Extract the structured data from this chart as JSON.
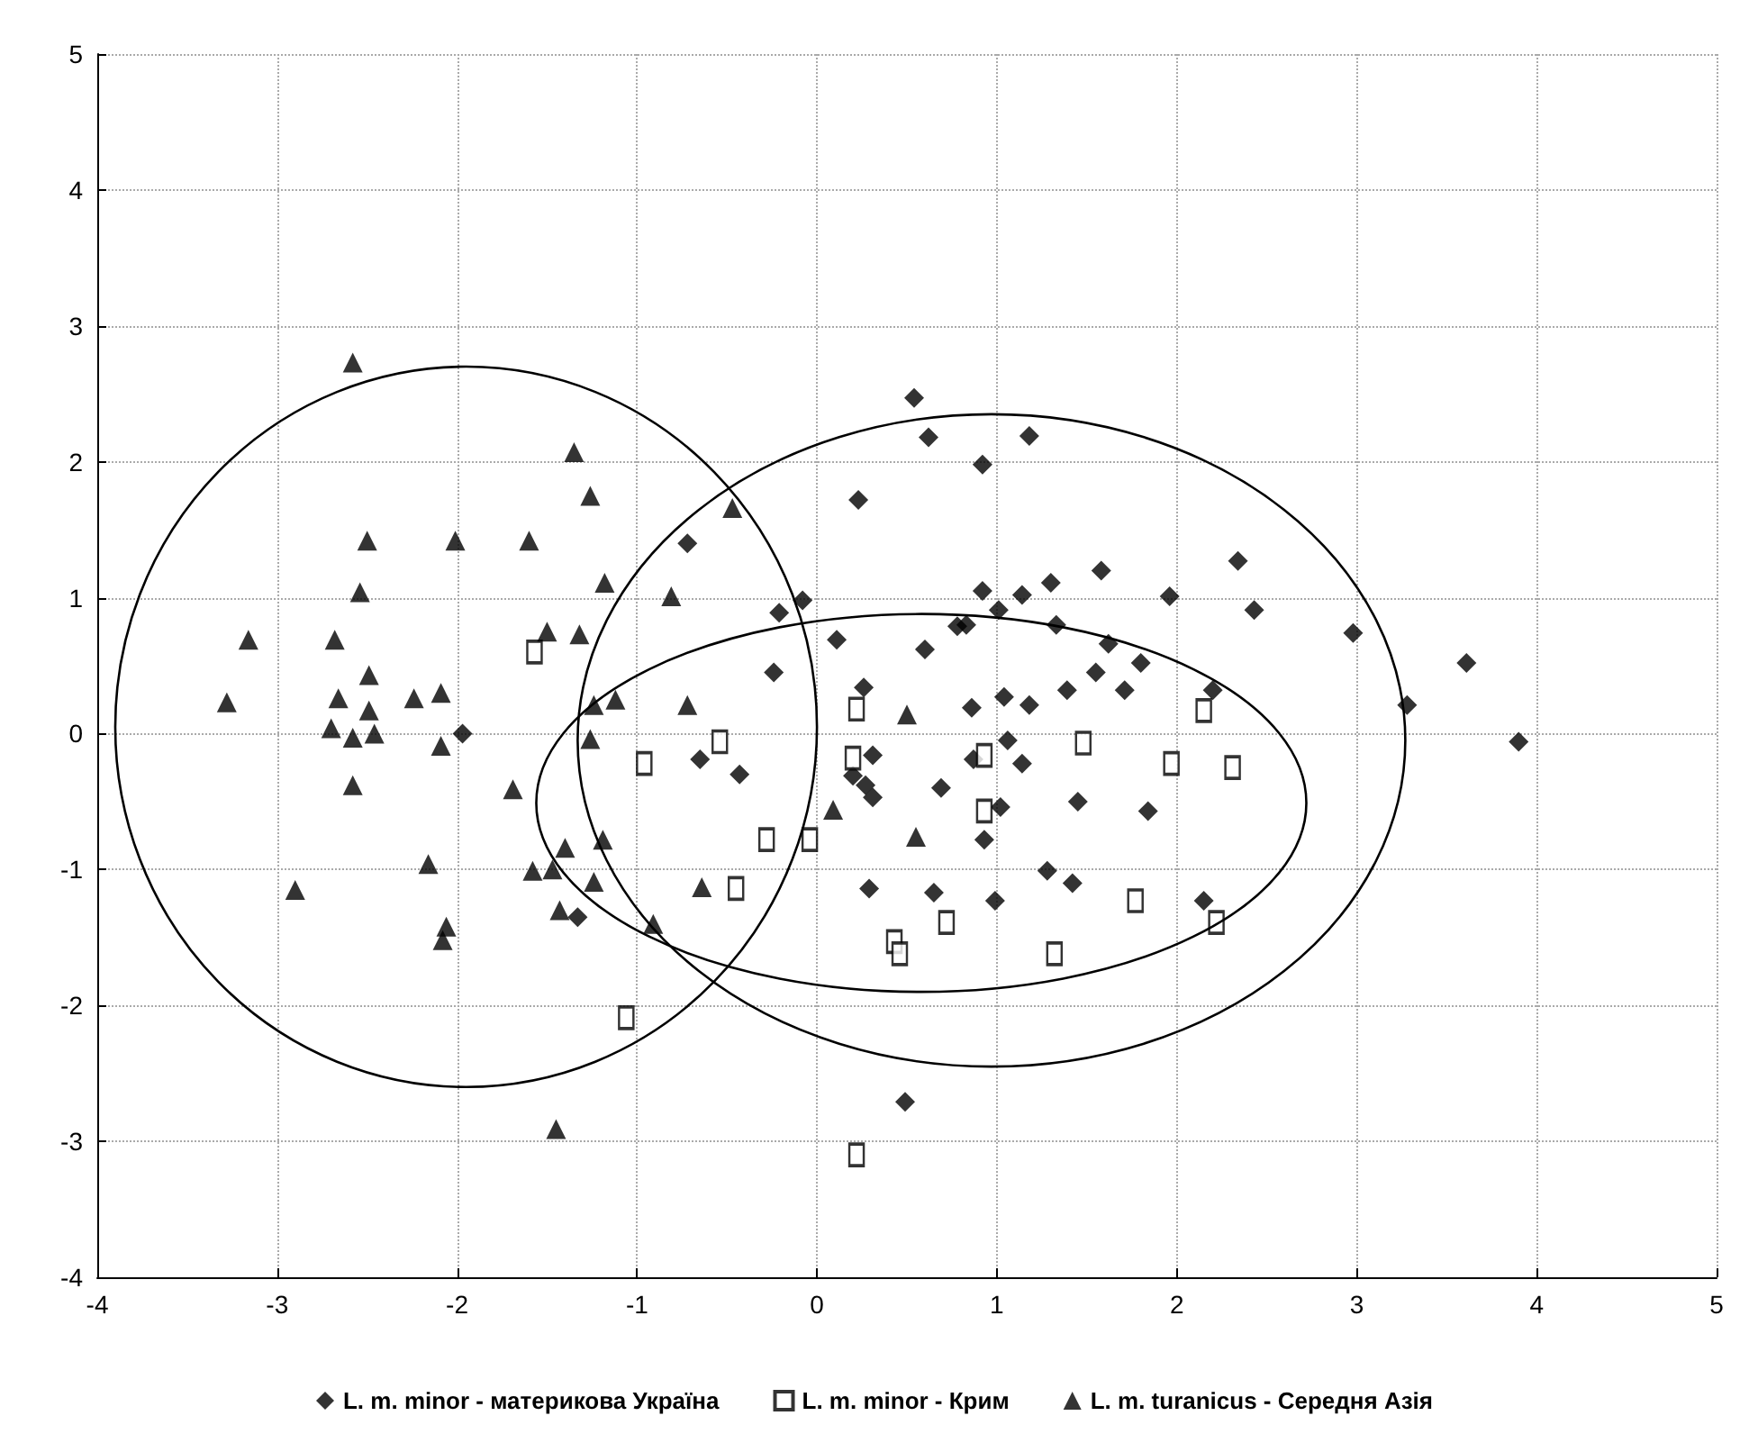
{
  "chart_data": {
    "type": "scatter",
    "xlim": [
      -4,
      5
    ],
    "ylim": [
      -4,
      5
    ],
    "xticks": [
      -4,
      -3,
      -2,
      -1,
      0,
      1,
      2,
      3,
      4,
      5
    ],
    "yticks": [
      -4,
      -3,
      -2,
      -1,
      0,
      1,
      2,
      3,
      4,
      5
    ],
    "grid": true,
    "legend": "bottom",
    "series": [
      {
        "name": "L. m. minor - материкова Україна",
        "color": "#000000",
        "marker": "diamond",
        "x": [
          -1.97,
          -1.33,
          0.54,
          0.62,
          0.23,
          -0.72,
          -0.21,
          -0.08,
          0.11,
          0.78,
          -0.24,
          0.26,
          0.6,
          0.31,
          -0.65,
          -0.43,
          0.2,
          0.27,
          0.31,
          0.69,
          0.29,
          0.65,
          0.49,
          1.18,
          0.92,
          1.3,
          1.58,
          2.34,
          1.96,
          2.43,
          0.92,
          1.14,
          1.01,
          0.83,
          1.33,
          1.62,
          1.55,
          1.8,
          1.39,
          1.71,
          2.2,
          0.86,
          1.04,
          1.18,
          1.06,
          0.87,
          1.14,
          1.02,
          1.45,
          1.84,
          0.93,
          1.28,
          1.42,
          0.99,
          2.15,
          2.98,
          3.61,
          3.28,
          3.9
        ],
        "values": [
          0.0,
          -1.35,
          2.47,
          2.18,
          1.72,
          1.4,
          0.89,
          0.98,
          0.69,
          0.79,
          0.45,
          0.34,
          0.62,
          -0.16,
          -0.19,
          -0.3,
          -0.31,
          -0.38,
          -0.47,
          -0.4,
          -1.14,
          -1.17,
          -2.71,
          2.19,
          1.98,
          1.11,
          1.2,
          1.27,
          1.01,
          0.91,
          1.05,
          1.02,
          0.91,
          0.8,
          0.8,
          0.66,
          0.45,
          0.52,
          0.32,
          0.32,
          0.32,
          0.19,
          0.27,
          0.21,
          -0.05,
          -0.19,
          -0.22,
          -0.54,
          -0.5,
          -0.57,
          -0.78,
          -1.01,
          -1.1,
          -1.23,
          -1.23,
          0.74,
          0.52,
          0.21,
          -0.06
        ]
      },
      {
        "name": "L. m. minor - Крим",
        "color": "#000000",
        "marker": "square",
        "x": [
          -1.57,
          -0.96,
          -0.54,
          0.22,
          0.2,
          -0.28,
          -0.04,
          -0.45,
          0.43,
          0.46,
          0.72,
          -1.06,
          0.22,
          0.93,
          1.48,
          2.15,
          1.97,
          2.31,
          0.93,
          1.32,
          1.77,
          2.22
        ],
        "values": [
          0.6,
          -0.22,
          -0.06,
          0.18,
          -0.18,
          -0.78,
          -0.78,
          -1.14,
          -1.53,
          -1.62,
          -1.39,
          -2.09,
          -3.1,
          -0.16,
          -0.07,
          0.17,
          -0.22,
          -0.25,
          -0.57,
          -1.62,
          -1.23,
          -1.39
        ]
      },
      {
        "name": "L. m. turanicus - Середня Азія",
        "color": "#000000",
        "marker": "triangle",
        "x": [
          -2.58,
          -1.35,
          -1.26,
          -2.5,
          -2.01,
          -1.6,
          -0.47,
          -1.18,
          -2.54,
          -3.16,
          -2.68,
          -1.5,
          -1.32,
          -0.81,
          -3.28,
          -2.66,
          -2.49,
          -2.49,
          -2.24,
          -2.09,
          -2.7,
          -2.58,
          -2.46,
          -2.09,
          -2.58,
          -1.69,
          -2.16,
          -2.9,
          -2.06,
          -2.08,
          -1.45,
          -1.24,
          -1.12,
          -0.72,
          0.5,
          -1.26,
          -1.19,
          0.09,
          0.55,
          -1.4,
          -1.58,
          -1.47,
          -1.24,
          -0.64,
          -1.43,
          -0.91
        ],
        "values": [
          2.73,
          2.07,
          1.75,
          1.42,
          1.42,
          1.42,
          1.66,
          1.11,
          1.04,
          0.69,
          0.69,
          0.75,
          0.73,
          1.01,
          0.23,
          0.26,
          0.43,
          0.17,
          0.26,
          0.3,
          0.04,
          -0.03,
          0.0,
          -0.09,
          -0.38,
          -0.41,
          -0.96,
          -1.15,
          -1.42,
          -1.52,
          -2.91,
          0.21,
          0.25,
          0.21,
          0.14,
          -0.04,
          -0.78,
          -0.56,
          -0.76,
          -0.84,
          -1.01,
          -1.0,
          -1.09,
          -1.13,
          -1.3,
          -1.4
        ]
      }
    ]
  }
}
